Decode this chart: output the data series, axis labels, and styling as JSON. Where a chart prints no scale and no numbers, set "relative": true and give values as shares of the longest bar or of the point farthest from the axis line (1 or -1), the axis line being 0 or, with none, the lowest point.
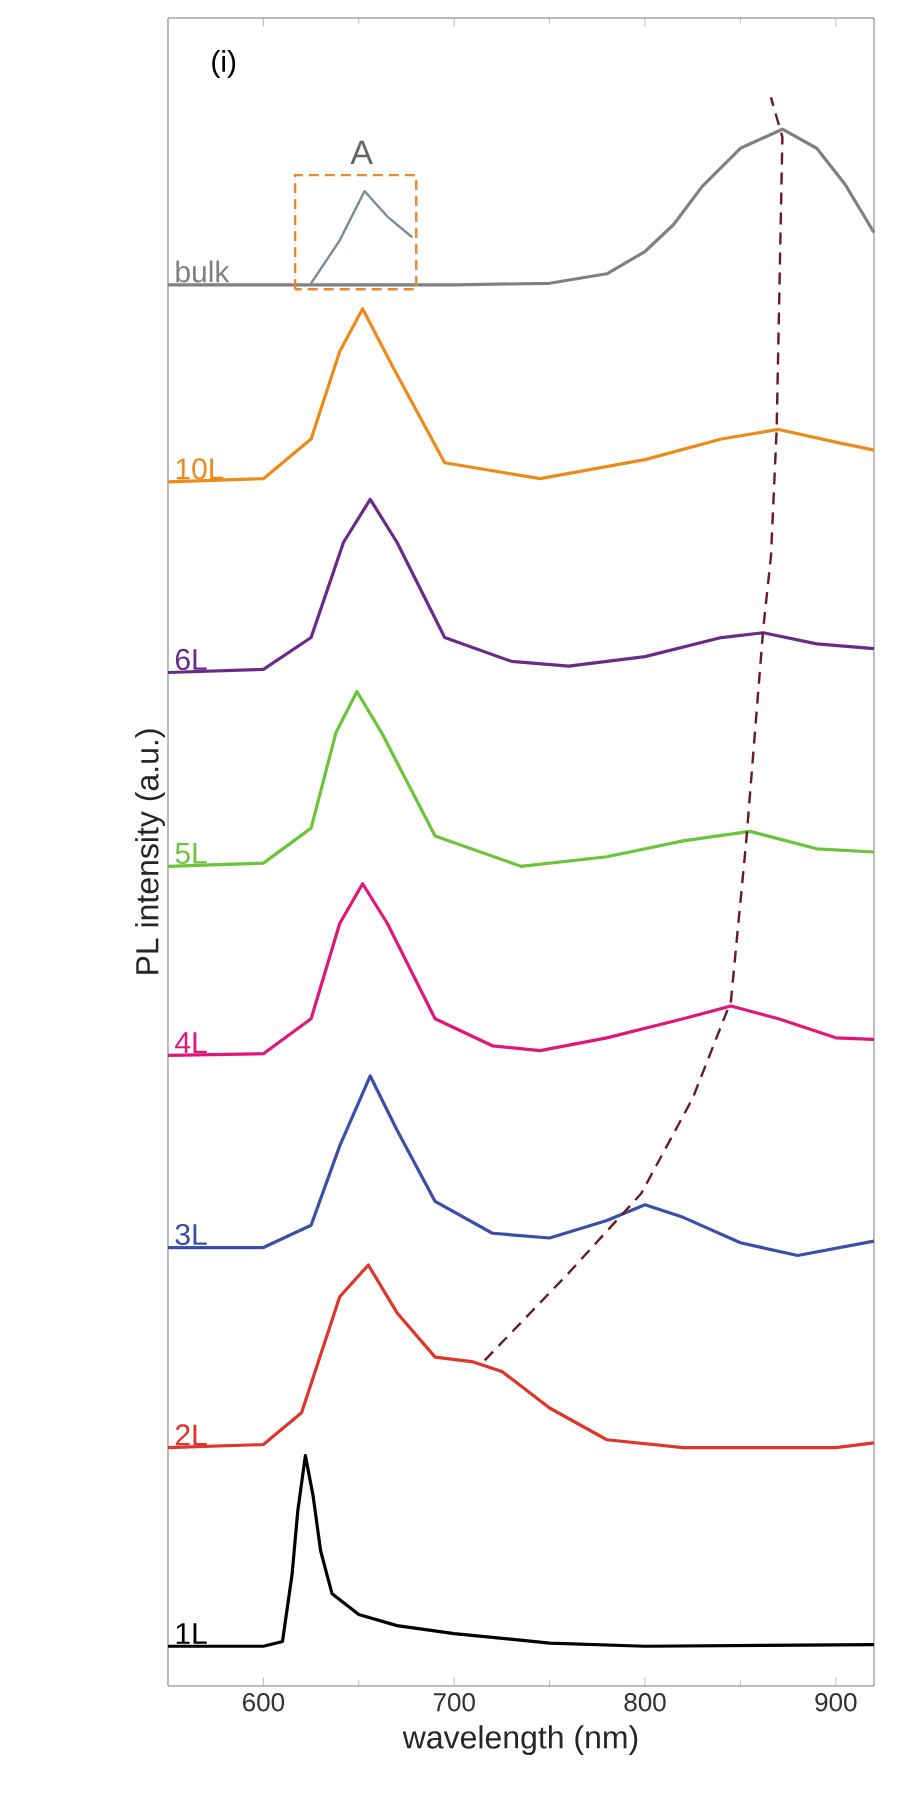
{
  "chart_data": {
    "type": "line",
    "relative": true,
    "xlabel": "wavelength (nm)",
    "ylabel": "PL intensity (a.u.)",
    "xlim": [
      550,
      920
    ],
    "xticks": [
      600,
      700,
      800,
      900
    ],
    "grid": false,
    "legend": false,
    "marker": "none",
    "tick_labels": "x",
    "annotations": [
      "(i)",
      "A"
    ],
    "series": [
      {
        "name": "1L",
        "color": "#000000",
        "x": [
          550,
          600,
          610,
          615,
          618,
          622,
          626,
          630,
          636,
          650,
          670,
          700,
          750,
          800,
          920
        ],
        "values": [
          0.025,
          0.025,
          0.028,
          0.07,
          0.11,
          0.145,
          0.12,
          0.085,
          0.058,
          0.045,
          0.038,
          0.033,
          0.027,
          0.025,
          0.026
        ]
      },
      {
        "name": "2L",
        "color": "#e0352b",
        "x": [
          550,
          600,
          620,
          640,
          655,
          670,
          690,
          710,
          725,
          750,
          780,
          820,
          900,
          920
        ],
        "values": [
          0.15,
          0.152,
          0.172,
          0.245,
          0.265,
          0.235,
          0.207,
          0.204,
          0.198,
          0.175,
          0.155,
          0.15,
          0.15,
          0.153
        ]
      },
      {
        "name": "3L",
        "color": "#3a4fa8",
        "x": [
          550,
          600,
          625,
          640,
          656,
          670,
          690,
          720,
          750,
          780,
          800,
          820,
          850,
          880,
          920
        ],
        "values": [
          0.276,
          0.276,
          0.29,
          0.34,
          0.384,
          0.35,
          0.305,
          0.285,
          0.282,
          0.293,
          0.303,
          0.295,
          0.279,
          0.271,
          0.28
        ]
      },
      {
        "name": "4L",
        "color": "#e0177a",
        "x": [
          550,
          600,
          625,
          640,
          652,
          665,
          690,
          720,
          745,
          780,
          820,
          845,
          870,
          900,
          920
        ],
        "values": [
          0.397,
          0.398,
          0.42,
          0.48,
          0.505,
          0.48,
          0.42,
          0.403,
          0.4,
          0.408,
          0.42,
          0.428,
          0.42,
          0.408,
          0.407
        ]
      },
      {
        "name": "5L",
        "color": "#6cc43a",
        "x": [
          550,
          600,
          625,
          638,
          649,
          662,
          690,
          735,
          780,
          820,
          855,
          890,
          920
        ],
        "values": [
          0.516,
          0.518,
          0.54,
          0.6,
          0.626,
          0.6,
          0.535,
          0.516,
          0.522,
          0.532,
          0.538,
          0.527,
          0.525
        ]
      },
      {
        "name": "6L",
        "color": "#6a2a8a",
        "x": [
          550,
          600,
          625,
          642,
          656,
          670,
          695,
          730,
          760,
          800,
          840,
          862,
          890,
          920
        ],
        "values": [
          0.638,
          0.64,
          0.66,
          0.72,
          0.747,
          0.72,
          0.66,
          0.645,
          0.642,
          0.648,
          0.66,
          0.663,
          0.656,
          0.653
        ]
      },
      {
        "name": "10L",
        "color": "#ee8a1a",
        "x": [
          550,
          600,
          625,
          640,
          652,
          668,
          695,
          745,
          800,
          840,
          870,
          900,
          920
        ],
        "values": [
          0.758,
          0.76,
          0.785,
          0.84,
          0.867,
          0.83,
          0.77,
          0.76,
          0.772,
          0.785,
          0.791,
          0.783,
          0.778
        ]
      },
      {
        "name": "bulk",
        "color": "#808080",
        "x": [
          550,
          700,
          750,
          780,
          800,
          815,
          830,
          850,
          872,
          890,
          905,
          920
        ],
        "values": [
          0.882,
          0.882,
          0.883,
          0.889,
          0.903,
          0.92,
          0.944,
          0.968,
          0.98,
          0.968,
          0.945,
          0.915
        ]
      },
      {
        "color": "#7f8a9a",
        "x": [
          625,
          640,
          653,
          665,
          678
        ],
        "values": [
          0.883,
          0.91,
          0.941,
          0.925,
          0.912
        ]
      },
      {
        "color": "#6b1a22",
        "line_style": "dashed",
        "x": [
          716,
          760,
          798,
          825,
          845,
          853,
          862,
          866,
          869,
          872,
          866
        ],
        "values": [
          0.205,
          0.26,
          0.31,
          0.37,
          0.431,
          0.531,
          0.666,
          0.711,
          0.791,
          0.975,
          1.0
        ]
      }
    ]
  }
}
